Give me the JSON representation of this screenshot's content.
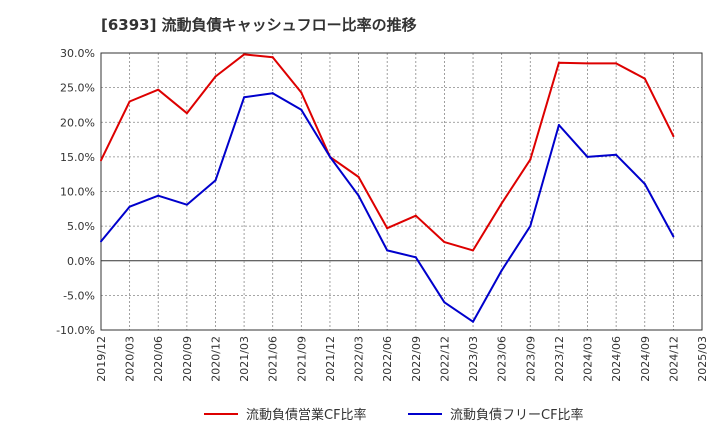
{
  "chart_data": {
    "type": "line",
    "title": "[6393]  流動負債キャッシュフロー比率の推移",
    "x": [
      "2019/12",
      "2020/03",
      "2020/06",
      "2020/09",
      "2020/12",
      "2021/03",
      "2021/06",
      "2021/09",
      "2021/12",
      "2022/03",
      "2022/06",
      "2022/09",
      "2022/12",
      "2023/03",
      "2023/06",
      "2023/09",
      "2023/12",
      "2024/03",
      "2024/06",
      "2024/09",
      "2024/12",
      "2025/03"
    ],
    "y_tick_labels": [
      "30.0%",
      "25.0%",
      "20.0%",
      "15.0%",
      "10.0%",
      "5.0%",
      "0.0%",
      "-5.0%",
      "-10.0%"
    ],
    "ylim": [
      -10,
      30
    ],
    "grid": true,
    "legend_position": "bottom",
    "series": [
      {
        "name": "流動負債営業CF比率",
        "color": "#dd0000",
        "values": [
          14.5,
          23.0,
          24.7,
          21.3,
          26.6,
          29.8,
          29.4,
          24.3,
          15.0,
          12.1,
          4.7,
          6.5,
          2.7,
          1.5,
          8.3,
          14.6,
          28.6,
          28.5,
          28.5,
          26.3,
          18.0,
          null
        ]
      },
      {
        "name": "流動負債フリーCF比率",
        "color": "#0000cc",
        "values": [
          2.8,
          7.8,
          9.4,
          8.1,
          11.6,
          23.6,
          24.2,
          21.8,
          15.0,
          9.4,
          1.5,
          0.5,
          -6.0,
          -8.8,
          -1.4,
          5.0,
          19.6,
          15.0,
          15.3,
          11.1,
          3.5,
          null
        ]
      }
    ]
  }
}
